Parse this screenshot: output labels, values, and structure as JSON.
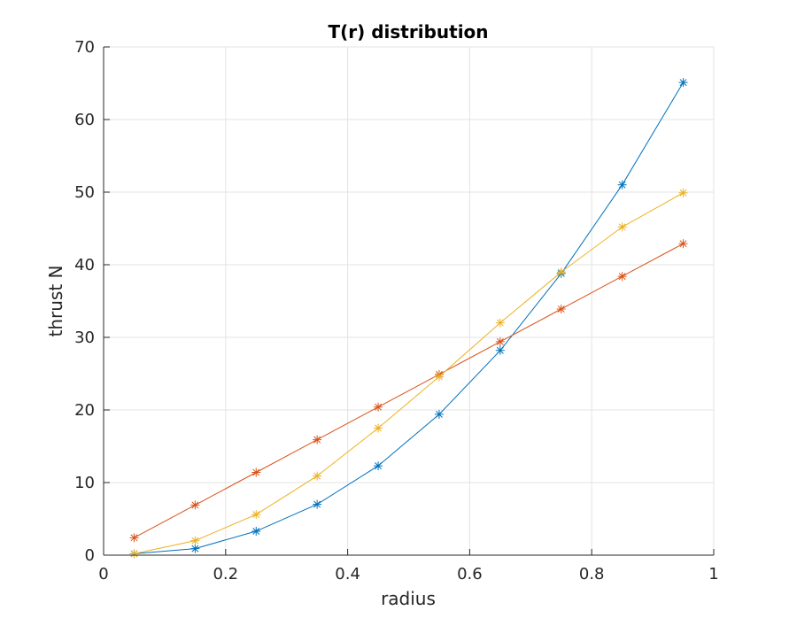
{
  "chart_data": {
    "type": "line",
    "title": "T(r) distribution",
    "xlabel": "radius",
    "ylabel": "thrust N",
    "xlim": [
      0,
      1
    ],
    "ylim": [
      0,
      70
    ],
    "xticks": [
      0,
      0.2,
      0.4,
      0.6,
      0.8,
      1
    ],
    "xtick_labels": [
      "0",
      "0.2",
      "0.4",
      "0.6",
      "0.8",
      "1"
    ],
    "yticks": [
      0,
      10,
      20,
      30,
      40,
      50,
      60,
      70
    ],
    "ytick_labels": [
      "0",
      "10",
      "20",
      "30",
      "40",
      "50",
      "60",
      "70"
    ],
    "grid": true,
    "marker": "asterisk",
    "x": [
      0.05,
      0.15,
      0.25,
      0.35,
      0.45,
      0.55,
      0.65,
      0.75,
      0.85,
      0.95
    ],
    "series": [
      {
        "color": "#0072BD",
        "values": [
          0.2,
          0.9,
          3.3,
          7.0,
          12.3,
          19.4,
          28.2,
          38.8,
          51.0,
          65.1
        ]
      },
      {
        "color": "#D95319",
        "values": [
          2.4,
          6.9,
          11.4,
          15.9,
          20.4,
          24.9,
          29.4,
          33.9,
          38.4,
          42.9
        ]
      },
      {
        "color": "#EDB120",
        "values": [
          0.2,
          2.0,
          5.6,
          10.9,
          17.5,
          24.6,
          32.0,
          39.0,
          45.2,
          49.9
        ]
      }
    ]
  }
}
